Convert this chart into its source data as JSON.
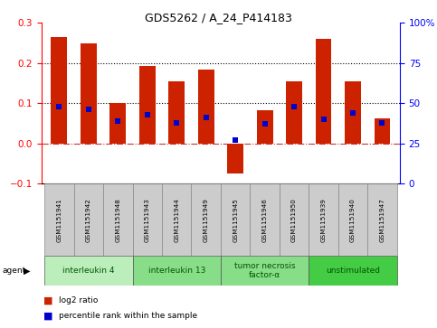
{
  "title": "GDS5262 / A_24_P414183",
  "samples": [
    "GSM1151941",
    "GSM1151942",
    "GSM1151948",
    "GSM1151943",
    "GSM1151944",
    "GSM1151949",
    "GSM1151945",
    "GSM1151946",
    "GSM1151950",
    "GSM1151939",
    "GSM1151940",
    "GSM1151947"
  ],
  "log2_ratio": [
    0.265,
    0.25,
    0.1,
    0.193,
    0.155,
    0.183,
    -0.075,
    0.082,
    0.155,
    0.26,
    0.155,
    0.063
  ],
  "percentile_rank": [
    48,
    46,
    39,
    43,
    38,
    41,
    27,
    37,
    48,
    40,
    44,
    38
  ],
  "agents": [
    {
      "label": "interleukin 4",
      "start": 0,
      "end": 3,
      "color": "#bbeebb"
    },
    {
      "label": "interleukin 13",
      "start": 3,
      "end": 6,
      "color": "#88dd88"
    },
    {
      "label": "tumor necrosis\nfactor-α",
      "start": 6,
      "end": 9,
      "color": "#88dd88"
    },
    {
      "label": "unstimulated",
      "start": 9,
      "end": 12,
      "color": "#44cc44"
    }
  ],
  "ylim_left": [
    -0.1,
    0.3
  ],
  "ylim_right": [
    0,
    100
  ],
  "left_yticks": [
    -0.1,
    0.0,
    0.1,
    0.2,
    0.3
  ],
  "right_yticks": [
    0,
    25,
    50,
    75,
    100
  ],
  "bar_color": "#cc2200",
  "dot_color": "#0000cc",
  "zero_line_color": "#cc3333",
  "legend_log2_label": "log2 ratio",
  "legend_pct_label": "percentile rank within the sample",
  "bar_width": 0.55
}
